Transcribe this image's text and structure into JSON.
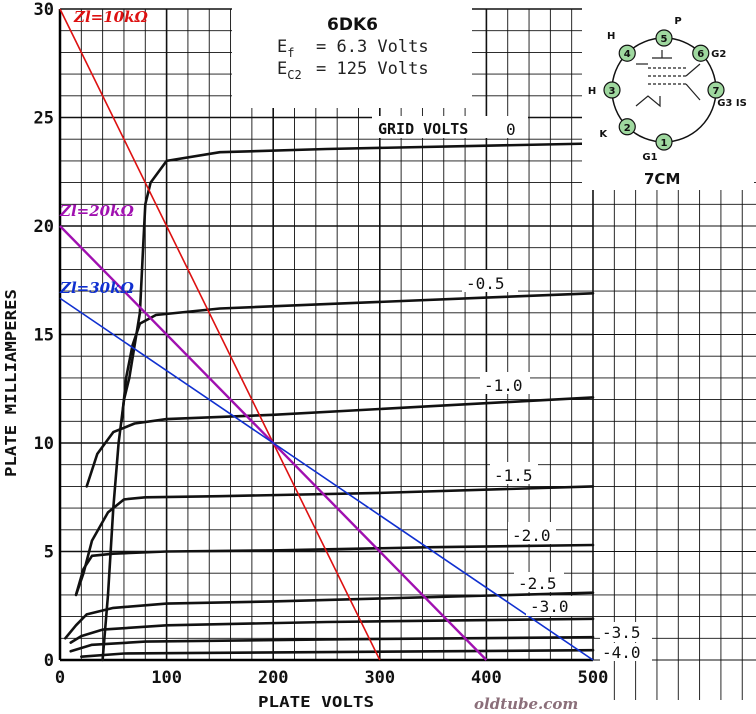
{
  "tube": {
    "name": "6DK6",
    "ef_label": "E",
    "ef_sub": "f",
    "ef_value": "= 6.3 Volts",
    "ec2_label": "E",
    "ec2_sub": "C2",
    "ec2_value": "= 125 Volts"
  },
  "basing": {
    "code": "7CM",
    "pins": [
      {
        "num": "1",
        "label": "G1"
      },
      {
        "num": "2",
        "label": "K"
      },
      {
        "num": "3",
        "label": "H"
      },
      {
        "num": "4",
        "label": "H"
      },
      {
        "num": "5",
        "label": "P"
      },
      {
        "num": "6",
        "label": "G2"
      },
      {
        "num": "7",
        "label": "G3 IS"
      }
    ],
    "pin_color": "#9fd89f"
  },
  "watermark": "oldtube.com",
  "chart_data": {
    "type": "line",
    "xlabel": "PLATE VOLTS",
    "ylabel": "PLATE MILLIAMPERES",
    "xlim": [
      0,
      500
    ],
    "ylim": [
      0,
      30
    ],
    "x_ticks": [
      "0",
      "100",
      "200",
      "300",
      "400",
      "500"
    ],
    "y_ticks": [
      "0",
      "5",
      "10",
      "15",
      "20",
      "25",
      "30"
    ],
    "grid": true,
    "grid_label": "GRID VOLTS",
    "series": [
      {
        "name": "0",
        "points": [
          [
            40,
            0
          ],
          [
            45,
            3
          ],
          [
            50,
            7
          ],
          [
            55,
            10
          ],
          [
            60,
            12
          ],
          [
            65,
            13
          ],
          [
            75,
            16
          ],
          [
            78,
            19
          ],
          [
            80,
            21
          ],
          [
            85,
            22
          ],
          [
            100,
            23
          ],
          [
            150,
            23.4
          ],
          [
            250,
            23.55
          ],
          [
            400,
            23.7
          ],
          [
            500,
            23.8
          ]
        ]
      },
      {
        "name": "-0.5",
        "points": [
          [
            58,
            11
          ],
          [
            62,
            13
          ],
          [
            68,
            14.5
          ],
          [
            75,
            15.5
          ],
          [
            90,
            15.9
          ],
          [
            150,
            16.2
          ],
          [
            250,
            16.4
          ],
          [
            400,
            16.7
          ],
          [
            500,
            16.9
          ]
        ]
      },
      {
        "name": "-1.0",
        "points": [
          [
            25,
            8
          ],
          [
            35,
            9.5
          ],
          [
            50,
            10.5
          ],
          [
            70,
            10.9
          ],
          [
            100,
            11.1
          ],
          [
            200,
            11.3
          ],
          [
            350,
            11.7
          ],
          [
            500,
            12.1
          ]
        ]
      },
      {
        "name": "-1.5",
        "points": [
          [
            15,
            3
          ],
          [
            22,
            4
          ],
          [
            30,
            5.5
          ],
          [
            45,
            6.8
          ],
          [
            60,
            7.4
          ],
          [
            80,
            7.5
          ],
          [
            150,
            7.55
          ],
          [
            300,
            7.7
          ],
          [
            500,
            8.0
          ]
        ]
      },
      {
        "name": "-2.0",
        "points": [
          [
            15,
            3
          ],
          [
            22,
            4.2
          ],
          [
            30,
            4.8
          ],
          [
            50,
            4.9
          ],
          [
            100,
            5.0
          ],
          [
            200,
            5.05
          ],
          [
            350,
            5.2
          ],
          [
            500,
            5.3
          ]
        ]
      },
      {
        "name": "-2.5",
        "points": [
          [
            5,
            1
          ],
          [
            15,
            1.6
          ],
          [
            25,
            2.1
          ],
          [
            50,
            2.4
          ],
          [
            100,
            2.6
          ],
          [
            200,
            2.7
          ],
          [
            350,
            2.9
          ],
          [
            500,
            3.1
          ]
        ]
      },
      {
        "name": "-3.0",
        "points": [
          [
            10,
            0.8
          ],
          [
            20,
            1.1
          ],
          [
            40,
            1.4
          ],
          [
            100,
            1.6
          ],
          [
            250,
            1.75
          ],
          [
            500,
            1.9
          ]
        ]
      },
      {
        "name": "-3.5",
        "points": [
          [
            10,
            0.4
          ],
          [
            30,
            0.7
          ],
          [
            80,
            0.85
          ],
          [
            250,
            0.95
          ],
          [
            500,
            1.05
          ]
        ]
      },
      {
        "name": "-4.0",
        "points": [
          [
            20,
            0.15
          ],
          [
            60,
            0.3
          ],
          [
            200,
            0.35
          ],
          [
            500,
            0.45
          ]
        ]
      }
    ],
    "load_lines": [
      {
        "name": "Zl=10kΩ",
        "from": [
          0,
          30
        ],
        "to": [
          300,
          0
        ],
        "color": "#dd1111"
      },
      {
        "name": "Zl=20kΩ",
        "from": [
          0,
          20
        ],
        "to": [
          400,
          0
        ],
        "color": "#a010b0"
      },
      {
        "name": "Zl=30kΩ",
        "from": [
          0,
          16.67
        ],
        "to": [
          500,
          0
        ],
        "color": "#1030d0"
      }
    ]
  }
}
